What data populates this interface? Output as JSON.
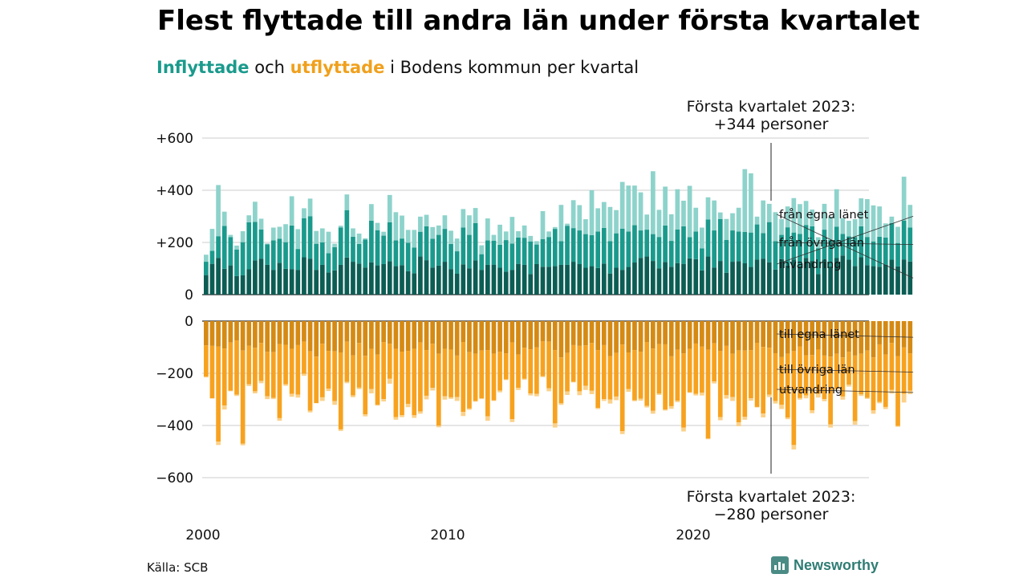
{
  "title": "Flest flyttade till andra län under första kvartalet",
  "subtitle": {
    "in_word": "Inflyttade",
    "and_word": "och",
    "out_word": "utflyttade",
    "rest": "i Bodens kommun per kvartal"
  },
  "source": "Källa: SCB",
  "logo": "Newsworthy",
  "colors": {
    "in_local": "#0c5d54",
    "in_other": "#1a9a8c",
    "in_abroad": "#8dd3cb",
    "out_local": "#d58a14",
    "out_other": "#f7a21f",
    "out_abroad": "#fbd189",
    "grid": "#dddddd",
    "axis": "#222222"
  },
  "chart_data": [
    {
      "type": "bar",
      "stacked": true,
      "panel": "inflyttade",
      "x_start": "2000 Q1",
      "ylim": [
        0,
        650
      ],
      "yticks": [
        "+600",
        "+400",
        "+200",
        "0"
      ],
      "ytick_values": [
        600,
        400,
        200,
        0
      ],
      "xticks": [
        "2000",
        "2010",
        "2020"
      ],
      "annotation": {
        "line1": "Första kvartalet 2023:",
        "line2": "+344 personer"
      },
      "series": [
        {
          "name": "från egna länet",
          "values": [
            75,
            118,
            141,
            99,
            112,
            71,
            74,
            97,
            131,
            138,
            114,
            95,
            122,
            99,
            98,
            95,
            143,
            138,
            95,
            114,
            85,
            93,
            114,
            142,
            126,
            119,
            104,
            124,
            112,
            117,
            128,
            109,
            113,
            90,
            82,
            146,
            132,
            104,
            111,
            126,
            98,
            80,
            116,
            101,
            131,
            95,
            114,
            115,
            103,
            88,
            95,
            118,
            114,
            79,
            117,
            107,
            107,
            109,
            114,
            114,
            126,
            117,
            103,
            109,
            102,
            119,
            81,
            103,
            95,
            106,
            123,
            141,
            146,
            129,
            101,
            125,
            107,
            121,
            118,
            139,
            136,
            93,
            146,
            104,
            129,
            84,
            126,
            128,
            120,
            106,
            134,
            138,
            124,
            96,
            136,
            111,
            135,
            108,
            141,
            129,
            79,
            134,
            108,
            140,
            150,
            134,
            109,
            143,
            113,
            109,
            107,
            114,
            134,
            108,
            135,
            127
          ]
        },
        {
          "name": "från övriga län",
          "values": [
            51,
            50,
            83,
            164,
            108,
            102,
            127,
            180,
            148,
            112,
            79,
            113,
            92,
            102,
            167,
            80,
            150,
            162,
            100,
            86,
            74,
            89,
            143,
            182,
            96,
            75,
            107,
            159,
            135,
            109,
            149,
            99,
            102,
            109,
            98,
            95,
            130,
            110,
            118,
            126,
            96,
            86,
            141,
            128,
            143,
            60,
            94,
            92,
            88,
            121,
            101,
            101,
            104,
            125,
            75,
            106,
            114,
            143,
            91,
            150,
            129,
            129,
            129,
            119,
            140,
            137,
            124,
            132,
            158,
            136,
            143,
            105,
            103,
            103,
            120,
            140,
            99,
            129,
            144,
            81,
            106,
            84,
            142,
            142,
            161,
            126,
            120,
            114,
            120,
            132,
            135,
            98,
            154,
            109,
            93,
            147,
            103,
            125,
            126,
            133,
            99,
            115,
            101,
            120,
            83,
            89,
            112,
            119,
            108,
            95,
            115,
            105,
            140,
            90,
            149,
            130
          ]
        },
        {
          "name": "invandring",
          "values": [
            27,
            84,
            196,
            55,
            9,
            15,
            42,
            27,
            77,
            41,
            3,
            49,
            46,
            69,
            112,
            76,
            38,
            68,
            49,
            54,
            82,
            13,
            7,
            60,
            32,
            40,
            5,
            64,
            28,
            15,
            105,
            108,
            88,
            49,
            68,
            58,
            44,
            45,
            36,
            52,
            51,
            49,
            71,
            75,
            58,
            34,
            84,
            22,
            77,
            33,
            102,
            24,
            47,
            21,
            13,
            107,
            21,
            7,
            139,
            8,
            107,
            97,
            57,
            172,
            89,
            99,
            131,
            89,
            179,
            176,
            152,
            146,
            58,
            241,
            104,
            149,
            102,
            154,
            98,
            197,
            91,
            80,
            85,
            115,
            25,
            80,
            66,
            91,
            241,
            227,
            30,
            125,
            70,
            111,
            61,
            80,
            132,
            114,
            92,
            64,
            42,
            99,
            90,
            144,
            60,
            60,
            68,
            107,
            145,
            138,
            116,
            54,
            25,
            62,
            168,
            87
          ]
        }
      ]
    },
    {
      "type": "bar",
      "stacked": true,
      "panel": "utflyttade",
      "x_start": "2000 Q1",
      "ylim": [
        -700,
        0
      ],
      "yticks": [
        "0",
        "−200",
        "−400",
        "−600"
      ],
      "ytick_values": [
        0,
        -200,
        -400,
        -600
      ],
      "xticks": [
        "2000",
        "2010",
        "2020"
      ],
      "annotation": {
        "line1": "Första kvartalet 2023:",
        "line2": "−280 personer"
      },
      "series": [
        {
          "name": "till egna länet",
          "values": [
            -93,
            -95,
            -98,
            -105,
            -82,
            -74,
            -113,
            -94,
            -102,
            -84,
            -118,
            -119,
            -88,
            -91,
            -106,
            -92,
            -79,
            -116,
            -136,
            -87,
            -114,
            -116,
            -120,
            -79,
            -131,
            -84,
            -133,
            -106,
            -128,
            -81,
            -87,
            -106,
            -117,
            -114,
            -106,
            -82,
            -111,
            -87,
            -125,
            -106,
            -109,
            -132,
            -80,
            -119,
            -125,
            -113,
            -111,
            -125,
            -118,
            -124,
            -82,
            -128,
            -102,
            -108,
            -101,
            -78,
            -79,
            -111,
            -139,
            -122,
            -92,
            -95,
            -93,
            -84,
            -111,
            -92,
            -134,
            -122,
            -90,
            -120,
            -111,
            -117,
            -80,
            -105,
            -88,
            -89,
            -135,
            -110,
            -124,
            -106,
            -86,
            -98,
            -110,
            -85,
            -114,
            -95,
            -125,
            -112,
            -113,
            -111,
            -83,
            -99,
            -102,
            -123,
            -138,
            -125,
            -115,
            -97,
            -131,
            -130,
            -109,
            -132,
            -136,
            -125,
            -139,
            -118,
            -132,
            -125,
            -113,
            -139,
            -89,
            -128,
            -84,
            -134,
            -101,
            -124
          ]
        },
        {
          "name": "till övriga län",
          "values": [
            -120,
            -201,
            -364,
            -218,
            -185,
            -208,
            -357,
            -148,
            -167,
            -145,
            -170,
            -175,
            -284,
            -151,
            -173,
            -190,
            -123,
            -227,
            -178,
            -205,
            -145,
            -191,
            -295,
            -154,
            -154,
            -171,
            -224,
            -154,
            -193,
            -218,
            -134,
            -262,
            -243,
            -203,
            -255,
            -264,
            -175,
            -169,
            -276,
            -182,
            -183,
            -159,
            -268,
            -216,
            -181,
            -183,
            -254,
            -179,
            -148,
            -99,
            -294,
            -128,
            -119,
            -169,
            -178,
            -133,
            -178,
            -281,
            -176,
            -148,
            -141,
            -174,
            -155,
            -183,
            -222,
            -207,
            -166,
            -167,
            -332,
            -140,
            -192,
            -180,
            -245,
            -239,
            -190,
            -250,
            -191,
            -195,
            -284,
            -167,
            -193,
            -176,
            -340,
            -146,
            -254,
            -189,
            -166,
            -276,
            -254,
            -185,
            -246,
            -255,
            -180,
            -183,
            -183,
            -245,
            -360,
            -198,
            -154,
            -212,
            -170,
            -167,
            -260,
            -134,
            -150,
            -125,
            -251,
            -156,
            -181,
            -203,
            -221,
            -201,
            -180,
            -268,
            -178,
            -143
          ]
        },
        {
          "name": "utvandring",
          "values": [
            -3,
            -1,
            -13,
            -16,
            -2,
            -5,
            -6,
            -7,
            -8,
            -9,
            -11,
            -5,
            -10,
            -6,
            -11,
            -11,
            -8,
            -7,
            -1,
            -14,
            -9,
            -14,
            -6,
            -5,
            -7,
            -6,
            -8,
            -17,
            -3,
            -9,
            -19,
            -10,
            -8,
            -13,
            -10,
            -9,
            -14,
            -10,
            -6,
            -13,
            -6,
            -15,
            -16,
            -5,
            -3,
            -3,
            -17,
            -2,
            -7,
            -3,
            -11,
            -8,
            -4,
            -8,
            -9,
            -4,
            -12,
            -16,
            -6,
            -13,
            -2,
            -15,
            -16,
            -13,
            -4,
            -7,
            -16,
            -14,
            -11,
            -11,
            -4,
            -8,
            -6,
            -11,
            -5,
            -4,
            -10,
            -6,
            -15,
            -2,
            -6,
            -11,
            -3,
            -8,
            -12,
            -13,
            -15,
            -15,
            -11,
            -9,
            -2,
            -15,
            -9,
            -10,
            -16,
            -6,
            -17,
            -6,
            -11,
            -11,
            -14,
            -8,
            -12,
            -4,
            -12,
            -8,
            -14,
            -6,
            -4,
            -13,
            -5,
            -8,
            -14,
            -3,
            -33,
            -13
          ]
        }
      ]
    }
  ]
}
